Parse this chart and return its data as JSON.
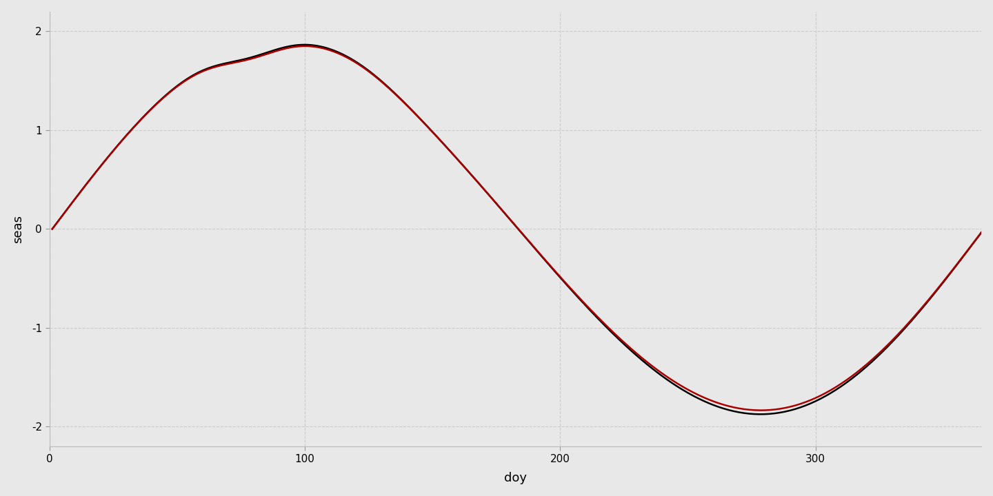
{
  "title": "",
  "xlabel": "doy",
  "ylabel": "seas",
  "xlim": [
    0,
    365
  ],
  "ylim": [
    -2.2,
    2.2
  ],
  "xticks": [
    0,
    100,
    200,
    300
  ],
  "yticks": [
    -2,
    -1,
    0,
    1,
    2
  ],
  "background_color": "#E8E8E8",
  "grid_color": "#CCCCCC",
  "black_line_color": "#000000",
  "red_line_color": "#AA0000",
  "line_width": 1.8,
  "figsize": [
    14.4,
    7.2
  ],
  "dpi": 100
}
